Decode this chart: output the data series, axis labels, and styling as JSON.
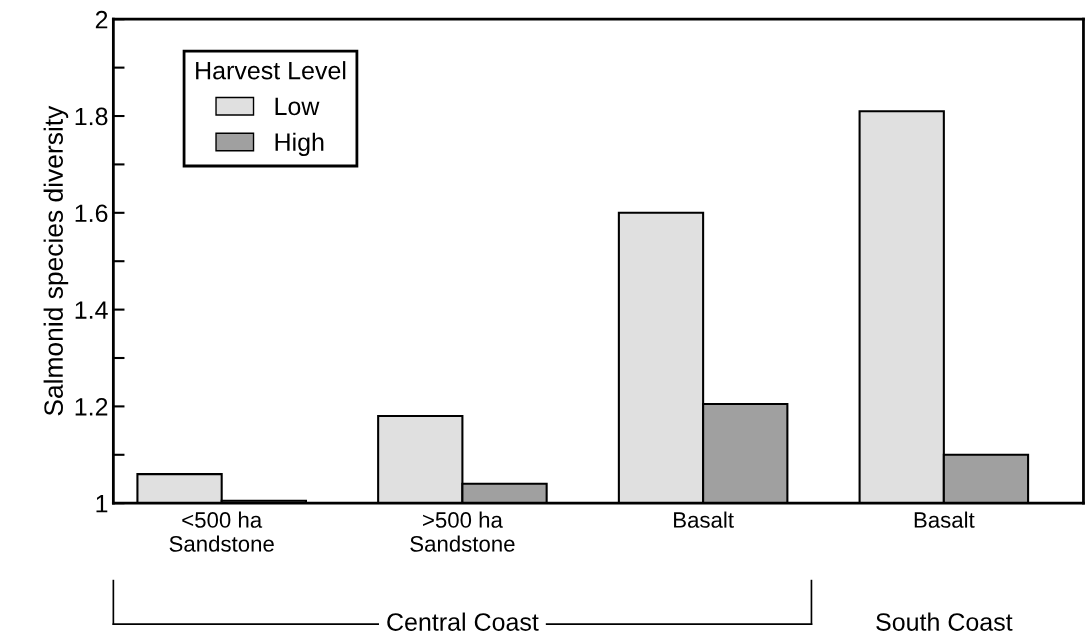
{
  "chart_data": {
    "type": "bar",
    "ylabel": "Salmonid species diversity",
    "categories": [
      "<500 ha\nSandstone",
      ">500 ha\nSandstone",
      "Basalt",
      "Basalt"
    ],
    "series": [
      {
        "name": "Low",
        "color": "#e0e0e0",
        "values": [
          1.06,
          1.18,
          1.6,
          1.81
        ]
      },
      {
        "name": "High",
        "color": "#a0a0a0",
        "values": [
          1.005,
          1.04,
          1.205,
          1.1
        ]
      }
    ],
    "legend_title": "Harvest Level",
    "legend": "top left",
    "ylim": [
      1,
      2
    ],
    "yticks": [
      1,
      {
        "value": 1.1,
        "label": null
      },
      1.2,
      {
        "value": 1.3,
        "label": null
      },
      1.4,
      {
        "value": 1.5,
        "label": null
      },
      1.6,
      {
        "value": 1.7,
        "label": null
      },
      1.8,
      {
        "value": 1.9,
        "label": null
      },
      2
    ],
    "annotations": [
      "Central Coast",
      "South Coast"
    ],
    "grid": false
  }
}
